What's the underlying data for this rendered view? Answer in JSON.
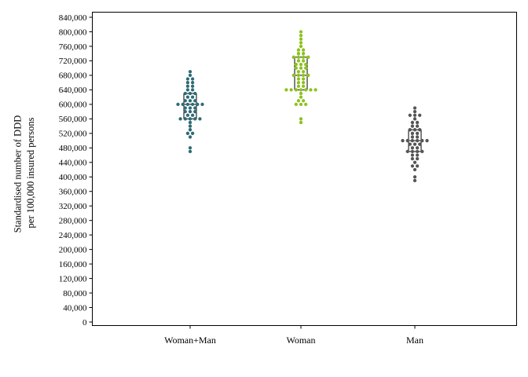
{
  "chart_data": {
    "type": "scatter",
    "subtype": "beeswarm-with-boxplot",
    "title": "",
    "xlabel": "",
    "ylabel_lines": [
      "Standardised number of DDD",
      "per 100,000 insured persons"
    ],
    "ylim": [
      0,
      860000
    ],
    "yticks": [
      0,
      40000,
      80000,
      120000,
      160000,
      200000,
      240000,
      280000,
      320000,
      360000,
      400000,
      440000,
      480000,
      520000,
      560000,
      600000,
      640000,
      680000,
      720000,
      760000,
      800000,
      840000
    ],
    "ytick_labels": [
      "0",
      "40,000",
      "80,000",
      "120,000",
      "160,000",
      "200,000",
      "240,000",
      "280,000",
      "320,000",
      "360,000",
      "400,000",
      "440,000",
      "480,000",
      "520,000",
      "560,000",
      "600,000",
      "640,000",
      "680,000",
      "720,000",
      "760,000",
      "800,000",
      "840,000"
    ],
    "grid": false,
    "legend": "none",
    "categories": [
      "Woman+Man",
      "Woman",
      "Man"
    ],
    "series": [
      {
        "color": "#2e6b75",
        "box": {
          "q1": 560000,
          "median": 600000,
          "q3": 630000
        },
        "values": [
          690000,
          680000,
          670000,
          670000,
          660000,
          660000,
          650000,
          650000,
          640000,
          640000,
          630000,
          630000,
          630000,
          620000,
          620000,
          610000,
          610000,
          610000,
          600000,
          600000,
          600000,
          600000,
          600000,
          600000,
          590000,
          590000,
          590000,
          580000,
          580000,
          580000,
          570000,
          570000,
          560000,
          560000,
          560000,
          560000,
          560000,
          550000,
          540000,
          530000,
          520000,
          520000,
          510000,
          480000,
          470000
        ]
      },
      {
        "color": "#8dc21f",
        "box": {
          "q1": 640000,
          "median": 680000,
          "q3": 730000
        },
        "values": [
          800000,
          790000,
          780000,
          770000,
          760000,
          750000,
          750000,
          740000,
          740000,
          730000,
          730000,
          730000,
          730000,
          720000,
          720000,
          710000,
          710000,
          710000,
          700000,
          700000,
          700000,
          690000,
          690000,
          680000,
          680000,
          680000,
          680000,
          670000,
          670000,
          660000,
          660000,
          650000,
          650000,
          640000,
          640000,
          640000,
          640000,
          640000,
          640000,
          640000,
          630000,
          620000,
          610000,
          610000,
          600000,
          600000,
          600000,
          560000,
          550000
        ]
      },
      {
        "color": "#555555",
        "box": {
          "q1": 470000,
          "median": 500000,
          "q3": 530000
        },
        "values": [
          590000,
          580000,
          570000,
          570000,
          570000,
          560000,
          550000,
          550000,
          540000,
          540000,
          530000,
          530000,
          530000,
          520000,
          520000,
          510000,
          510000,
          500000,
          500000,
          500000,
          500000,
          500000,
          500000,
          490000,
          490000,
          490000,
          480000,
          480000,
          470000,
          470000,
          470000,
          470000,
          460000,
          460000,
          450000,
          450000,
          440000,
          430000,
          430000,
          420000,
          400000,
          390000
        ]
      }
    ]
  }
}
